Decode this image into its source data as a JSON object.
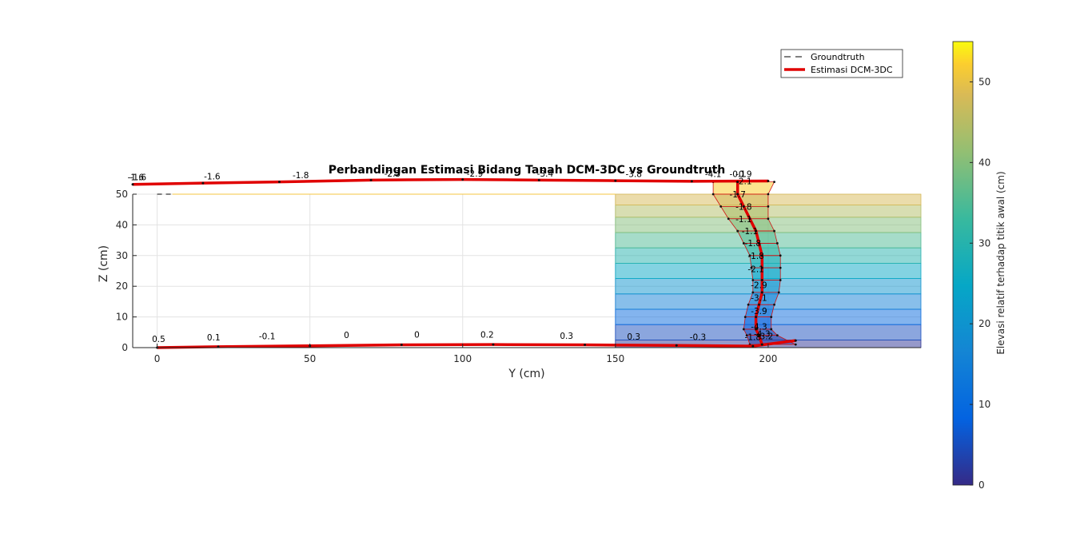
{
  "chart_data": {
    "type": "line",
    "title": "Perbandingan Estimasi Bidang Tanah DCM-3DC vs Groundtruth",
    "xlabel": "Y (cm)",
    "ylabel": "Z (cm)",
    "xlim": [
      -8,
      250
    ],
    "ylim": [
      0,
      50
    ],
    "xticks": [
      0,
      50,
      100,
      150,
      200
    ],
    "yticks": [
      0,
      10,
      20,
      30,
      40,
      50
    ],
    "grid": true,
    "legend": {
      "position": "top-right",
      "entries": [
        "Groundtruth",
        "Estimasi DCM-3DC"
      ]
    },
    "colorbar": {
      "label": "Elevasi relatif terhadap titik awal (cm)",
      "range": [
        0,
        55
      ],
      "ticks": [
        0,
        10,
        20,
        30,
        40,
        50
      ]
    },
    "series": [
      {
        "name": "Groundtruth",
        "x": [
          0,
          5
        ],
        "y": [
          50,
          50
        ]
      },
      {
        "name": "Estimasi DCM-3DC",
        "segments": [
          {
            "x": [
              -8,
              15,
              40,
              70,
              100,
              125,
              150,
              175,
              200
            ],
            "y": [
              53.2,
              53.6,
              54.0,
              54.6,
              54.8,
              54.6,
              54.4,
              54.2,
              54.3
            ]
          },
          {
            "x": [
              0,
              20,
              50,
              80,
              110,
              140,
              170,
              195,
              209
            ],
            "y": [
              0,
              0.3,
              0.6,
              0.9,
              1.0,
              0.9,
              0.7,
              0.5,
              2.3
            ]
          },
          {
            "x": [
              190,
              190,
              192,
              194,
              196,
              197,
              198,
              198,
              198,
              198,
              197,
              196,
              196,
              197,
              198
            ],
            "y": [
              54,
              50,
              46,
              42,
              38,
              34,
              30,
              26,
              22,
              18,
              14,
              10,
              6,
              4,
              1
            ]
          }
        ]
      }
    ],
    "top_point_labels": [
      {
        "x": -7,
        "y": 54.5,
        "text": "-1.6"
      },
      {
        "x": -6.2,
        "y": 54.5,
        "text": "-1.6"
      },
      {
        "x": 18,
        "y": 54.8,
        "text": "-1.6"
      },
      {
        "x": 47,
        "y": 55.2,
        "text": "-1.8"
      },
      {
        "x": 77,
        "y": 55.7,
        "text": "-2.3"
      },
      {
        "x": 104,
        "y": 55.7,
        "text": "-2.9"
      },
      {
        "x": 127,
        "y": 55.7,
        "text": "-3.4"
      },
      {
        "x": 156,
        "y": 55.6,
        "text": "-3.8"
      },
      {
        "x": 182,
        "y": 55.6,
        "text": "-4.1"
      },
      {
        "x": 190,
        "y": 55.6,
        "text": "-0.1"
      },
      {
        "x": 192,
        "y": 55.6,
        "text": "-0.9"
      }
    ],
    "bottom_point_labels": [
      {
        "x": 0.5,
        "y": 1.8,
        "text": "0.5"
      },
      {
        "x": 18.5,
        "y": 2.3,
        "text": "0.1"
      },
      {
        "x": 36,
        "y": 2.7,
        "text": "-0.1"
      },
      {
        "x": 62,
        "y": 3.1,
        "text": "0"
      },
      {
        "x": 85,
        "y": 3.2,
        "text": "0"
      },
      {
        "x": 108,
        "y": 3.3,
        "text": "0.2"
      },
      {
        "x": 134,
        "y": 2.9,
        "text": "0.3"
      },
      {
        "x": 156,
        "y": 2.6,
        "text": "0.3"
      },
      {
        "x": 177,
        "y": 2.5,
        "text": "-0.3"
      },
      {
        "x": 195,
        "y": 2.5,
        "text": "-1.8"
      },
      {
        "x": 199,
        "y": 2.7,
        "text": "-3.2"
      }
    ],
    "column_labels": [
      {
        "x": 192,
        "y": 53.2,
        "text": "-2.1"
      },
      {
        "x": 190,
        "y": 49.0,
        "text": "-1.7"
      },
      {
        "x": 192,
        "y": 44.9,
        "text": "-1.8"
      },
      {
        "x": 192,
        "y": 40.9,
        "text": "-1.1"
      },
      {
        "x": 194,
        "y": 37.0,
        "text": "-1.1"
      },
      {
        "x": 195,
        "y": 33.1,
        "text": "-1.8"
      },
      {
        "x": 196,
        "y": 28.9,
        "text": "-1.8"
      },
      {
        "x": 196,
        "y": 24.6,
        "text": "-2.1"
      },
      {
        "x": 197,
        "y": 19.4,
        "text": "-2.9"
      },
      {
        "x": 197,
        "y": 15.2,
        "text": "-3.1"
      },
      {
        "x": 197,
        "y": 10.9,
        "text": "-3.9"
      },
      {
        "x": 197,
        "y": 5.9,
        "text": "-4.3"
      },
      {
        "x": 198,
        "y": 3.5,
        "text": "-4.3"
      }
    ]
  }
}
